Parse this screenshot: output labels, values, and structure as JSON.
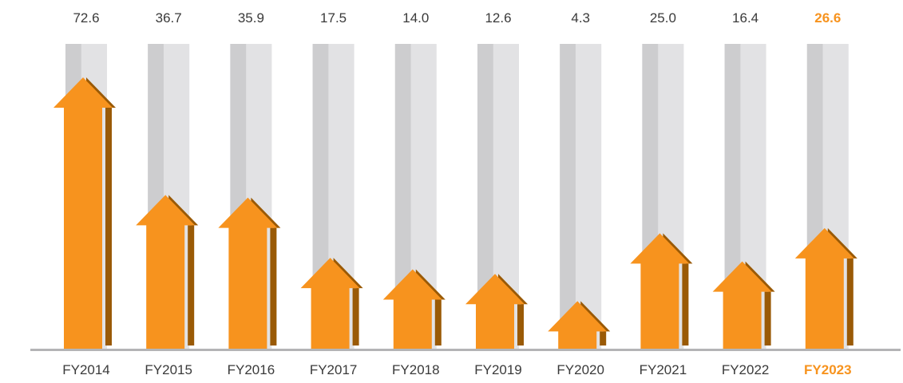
{
  "chart_data": {
    "type": "bar",
    "title": "",
    "xlabel": "",
    "ylabel": "",
    "categories": [
      "FY2014",
      "FY2015",
      "FY2016",
      "FY2017",
      "FY2018",
      "FY2019",
      "FY2020",
      "FY2021",
      "FY2022",
      "FY2023"
    ],
    "values": [
      72.6,
      36.7,
      35.9,
      17.5,
      14.0,
      12.6,
      4.3,
      25.0,
      16.4,
      26.6
    ],
    "value_labels": [
      "72.6",
      "36.7",
      "35.9",
      "17.5",
      "14.0",
      "12.6",
      "4.3",
      "25.0",
      "16.4",
      "26.6"
    ],
    "highlighted_category": "FY2023",
    "grid": false,
    "legend": "none"
  },
  "colors": {
    "arrow": "#f7931e",
    "arrow_shadow": "#9a5a06",
    "column_light": "#e2e2e4",
    "column_dark": "#cdcdcf",
    "baseline": "#b4b4b6",
    "text": "#3a3a3a",
    "highlight": "#f7931e"
  }
}
